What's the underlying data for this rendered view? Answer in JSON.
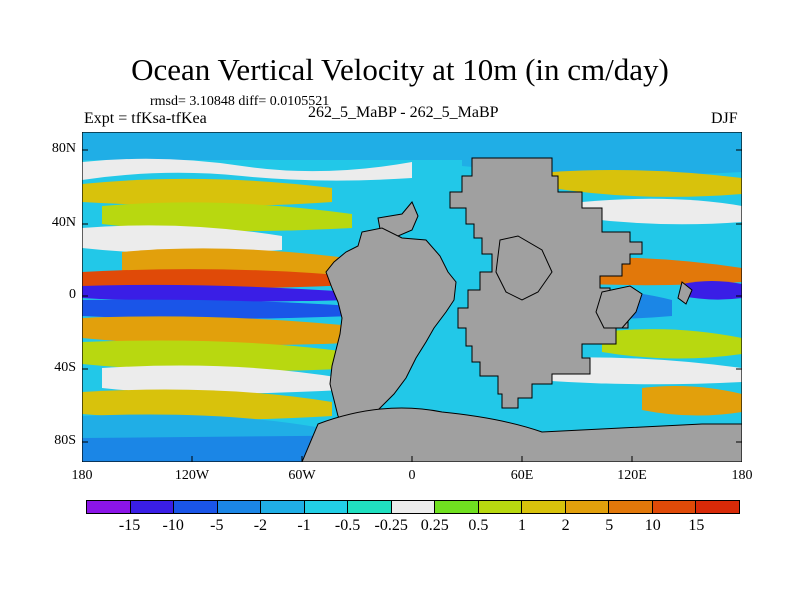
{
  "title": "Ocean Vertical Velocity at 10m (in cm/day)",
  "stats": "rmsd= 3.10848 diff= 0.0105521",
  "experiment": "Expt = tfKsa-tfKea",
  "subtitle": "262_5_MaBP - 262_5_MaBP",
  "season": "DJF",
  "axes": {
    "x_ticks": [
      "180",
      "120W",
      "60W",
      "0",
      "60E",
      "120E",
      "180"
    ],
    "y_ticks": [
      "80N",
      "40N",
      "0",
      "40S",
      "80S"
    ]
  },
  "colorbar": {
    "colors": [
      "#8b15e8",
      "#3a1ee6",
      "#1a55e8",
      "#1b86e6",
      "#20aee6",
      "#22cfe6",
      "#20e0c0",
      "#ececec",
      "#70e020",
      "#b8d810",
      "#d8c20c",
      "#e2a00c",
      "#e2780a",
      "#e04a08",
      "#d82a08"
    ],
    "labels": [
      "-15",
      "-10",
      "-5",
      "-2",
      "-1",
      "-0.5",
      "-0.25",
      "0.25",
      "0.5",
      "1",
      "2",
      "5",
      "10",
      "15"
    ]
  },
  "legend_land_color": "#a0a0a0"
}
